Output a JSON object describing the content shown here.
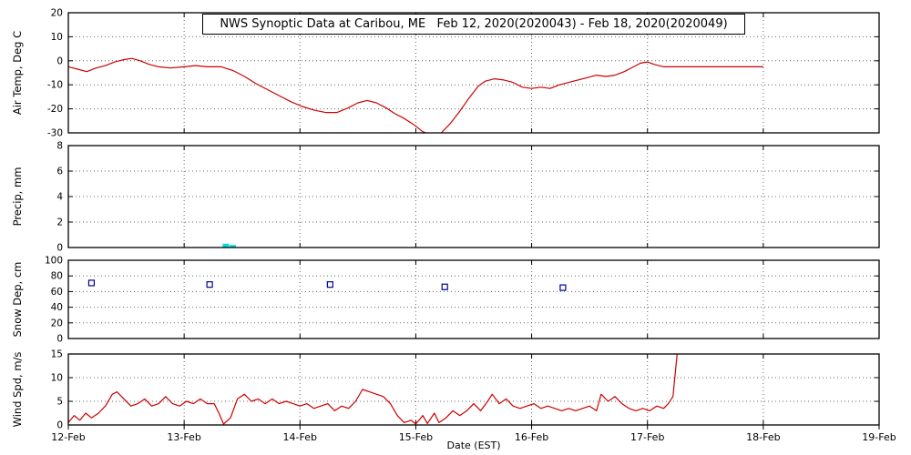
{
  "chart_data": {
    "type": "multi-panel-timeseries",
    "title": "NWS Synoptic Data at Caribou, ME   Feb 12, 2020(2020043) - Feb 18, 2020(2020049)",
    "xlabel": "Date (EST)",
    "x_unit": "days since 2020-02-12 00:00 EST",
    "xlim": [
      0,
      7
    ],
    "x_tick_labels": [
      "12-Feb",
      "13-Feb",
      "14-Feb",
      "15-Feb",
      "16-Feb",
      "17-Feb",
      "18-Feb",
      "19-Feb"
    ],
    "grid": "dotted",
    "background": "#ffffff",
    "panels": [
      {
        "type": "line",
        "ylabel": "Air Temp, Deg C",
        "ylim": [
          -30,
          20
        ],
        "yticks": [
          20,
          10,
          0,
          -10,
          -20,
          -30
        ],
        "series": [
          {
            "name": "air_temp_c",
            "color": "#cc0000",
            "points": [
              [
                0.0,
                -2.5
              ],
              [
                0.08,
                -3.5
              ],
              [
                0.16,
                -4.5
              ],
              [
                0.24,
                -3
              ],
              [
                0.32,
                -2
              ],
              [
                0.4,
                -0.5
              ],
              [
                0.48,
                0.5
              ],
              [
                0.55,
                1
              ],
              [
                0.62,
                0
              ],
              [
                0.7,
                -1.5
              ],
              [
                0.78,
                -2.5
              ],
              [
                0.88,
                -3
              ],
              [
                1.0,
                -2.5
              ],
              [
                1.1,
                -2
              ],
              [
                1.2,
                -2.5
              ],
              [
                1.32,
                -2.5
              ],
              [
                1.42,
                -4
              ],
              [
                1.52,
                -6.5
              ],
              [
                1.62,
                -9.5
              ],
              [
                1.72,
                -12
              ],
              [
                1.82,
                -14.5
              ],
              [
                1.92,
                -17
              ],
              [
                2.02,
                -19
              ],
              [
                2.12,
                -20.5
              ],
              [
                2.22,
                -21.5
              ],
              [
                2.32,
                -21.5
              ],
              [
                2.42,
                -19.5
              ],
              [
                2.5,
                -17.5
              ],
              [
                2.58,
                -16.5
              ],
              [
                2.66,
                -17.5
              ],
              [
                2.74,
                -19.5
              ],
              [
                2.82,
                -22
              ],
              [
                2.9,
                -24
              ],
              [
                2.98,
                -26.5
              ],
              [
                3.06,
                -29.5
              ],
              [
                3.14,
                -31
              ],
              [
                3.22,
                -30
              ],
              [
                3.3,
                -26
              ],
              [
                3.38,
                -21
              ],
              [
                3.46,
                -15.5
              ],
              [
                3.54,
                -10.5
              ],
              [
                3.6,
                -8.5
              ],
              [
                3.68,
                -7.5
              ],
              [
                3.76,
                -8
              ],
              [
                3.84,
                -9
              ],
              [
                3.92,
                -11
              ],
              [
                4.0,
                -11.5
              ],
              [
                4.08,
                -11
              ],
              [
                4.16,
                -11.5
              ],
              [
                4.24,
                -10
              ],
              [
                4.32,
                -9
              ],
              [
                4.4,
                -8
              ],
              [
                4.48,
                -7
              ],
              [
                4.56,
                -6
              ],
              [
                4.64,
                -6.5
              ],
              [
                4.72,
                -6
              ],
              [
                4.8,
                -4.5
              ],
              [
                4.88,
                -2.5
              ],
              [
                4.94,
                -1
              ],
              [
                5.0,
                -0.5
              ],
              [
                5.06,
                -1.5
              ],
              [
                5.14,
                -2.5
              ],
              [
                5.4,
                -2.5
              ],
              [
                6.0,
                -2.5
              ]
            ]
          }
        ]
      },
      {
        "type": "bar",
        "ylabel": "Precip, mm",
        "ylim": [
          0,
          8
        ],
        "yticks": [
          8,
          6,
          4,
          2,
          0
        ],
        "bar_color": "#00dddd",
        "series": [
          {
            "name": "precip_mm",
            "color": "#00dddd",
            "points": [
              [
                1.36,
                0.3
              ],
              [
                1.42,
                0.2
              ]
            ]
          }
        ]
      },
      {
        "type": "scatter",
        "ylabel": "Snow Dep, cm",
        "ylim": [
          0,
          100
        ],
        "yticks": [
          100,
          80,
          60,
          40,
          20,
          0
        ],
        "marker": "open-square",
        "series": [
          {
            "name": "snow_depth_cm",
            "color": "#000099",
            "points": [
              [
                0.2,
                71
              ],
              [
                1.22,
                69
              ],
              [
                2.26,
                69
              ],
              [
                3.25,
                66
              ],
              [
                4.27,
                65
              ]
            ]
          }
        ]
      },
      {
        "type": "line",
        "ylabel": "Wind Spd, m/s",
        "ylim": [
          0,
          15
        ],
        "yticks": [
          15,
          10,
          5,
          0
        ],
        "series": [
          {
            "name": "wind_speed_ms",
            "color": "#cc0000",
            "points": [
              [
                0.0,
                0.5
              ],
              [
                0.05,
                2
              ],
              [
                0.1,
                1
              ],
              [
                0.15,
                2.5
              ],
              [
                0.2,
                1.5
              ],
              [
                0.26,
                2.5
              ],
              [
                0.32,
                4
              ],
              [
                0.38,
                6.5
              ],
              [
                0.42,
                7
              ],
              [
                0.48,
                5.5
              ],
              [
                0.54,
                4
              ],
              [
                0.6,
                4.5
              ],
              [
                0.66,
                5.5
              ],
              [
                0.72,
                4
              ],
              [
                0.78,
                4.5
              ],
              [
                0.84,
                6
              ],
              [
                0.9,
                4.5
              ],
              [
                0.96,
                4
              ],
              [
                1.02,
                5
              ],
              [
                1.08,
                4.5
              ],
              [
                1.14,
                5.5
              ],
              [
                1.2,
                4.5
              ],
              [
                1.26,
                4.5
              ],
              [
                1.3,
                2.5
              ],
              [
                1.34,
                0.2
              ],
              [
                1.4,
                1.5
              ],
              [
                1.46,
                5.5
              ],
              [
                1.52,
                6.5
              ],
              [
                1.58,
                5
              ],
              [
                1.64,
                5.5
              ],
              [
                1.7,
                4.5
              ],
              [
                1.76,
                5.5
              ],
              [
                1.82,
                4.5
              ],
              [
                1.88,
                5
              ],
              [
                1.94,
                4.5
              ],
              [
                2.0,
                4
              ],
              [
                2.06,
                4.5
              ],
              [
                2.12,
                3.5
              ],
              [
                2.18,
                4
              ],
              [
                2.24,
                4.5
              ],
              [
                2.3,
                3
              ],
              [
                2.36,
                4
              ],
              [
                2.42,
                3.5
              ],
              [
                2.48,
                5
              ],
              [
                2.54,
                7.5
              ],
              [
                2.6,
                7
              ],
              [
                2.66,
                6.5
              ],
              [
                2.72,
                6
              ],
              [
                2.78,
                4.5
              ],
              [
                2.84,
                2
              ],
              [
                2.9,
                0.5
              ],
              [
                2.96,
                1
              ],
              [
                3.0,
                0.2
              ],
              [
                3.06,
                2
              ],
              [
                3.1,
                0.3
              ],
              [
                3.16,
                2.5
              ],
              [
                3.2,
                0.5
              ],
              [
                3.26,
                1.5
              ],
              [
                3.32,
                3
              ],
              [
                3.38,
                2
              ],
              [
                3.44,
                3
              ],
              [
                3.5,
                4.5
              ],
              [
                3.56,
                3
              ],
              [
                3.62,
                5
              ],
              [
                3.66,
                6.5
              ],
              [
                3.72,
                4.5
              ],
              [
                3.78,
                5.5
              ],
              [
                3.84,
                4
              ],
              [
                3.9,
                3.5
              ],
              [
                3.96,
                4
              ],
              [
                4.02,
                4.5
              ],
              [
                4.08,
                3.5
              ],
              [
                4.14,
                4
              ],
              [
                4.2,
                3.5
              ],
              [
                4.26,
                3
              ],
              [
                4.32,
                3.5
              ],
              [
                4.38,
                3
              ],
              [
                4.44,
                3.5
              ],
              [
                4.5,
                4
              ],
              [
                4.56,
                3
              ],
              [
                4.6,
                6.5
              ],
              [
                4.66,
                5
              ],
              [
                4.72,
                6
              ],
              [
                4.78,
                4.5
              ],
              [
                4.84,
                3.5
              ],
              [
                4.9,
                3
              ],
              [
                4.96,
                3.5
              ],
              [
                5.02,
                3
              ],
              [
                5.08,
                4
              ],
              [
                5.14,
                3.5
              ],
              [
                5.18,
                4.5
              ],
              [
                5.22,
                6
              ],
              [
                5.26,
                16
              ]
            ]
          }
        ]
      }
    ]
  },
  "colors": {
    "line_red": "#cc0000",
    "precip_cyan": "#00dddd",
    "snow_blue": "#000099",
    "axis_black": "#000000"
  }
}
